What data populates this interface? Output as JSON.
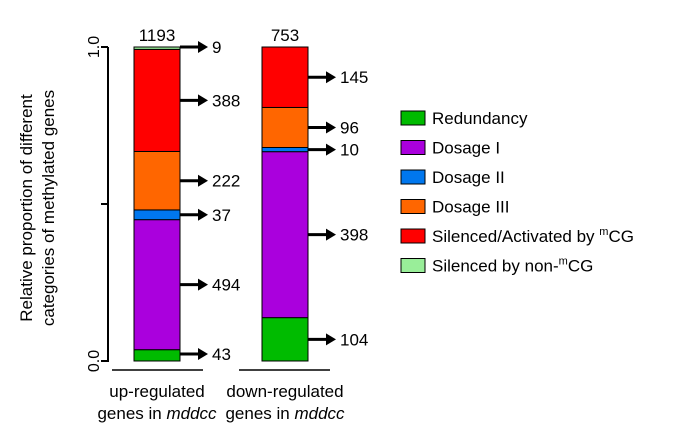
{
  "chart_data": {
    "type": "bar",
    "stacked": true,
    "normalized": true,
    "ylabel_lines": [
      "Relative proportion of different",
      "categories of methylated genes"
    ],
    "yticks": [
      "0.0",
      "",
      "1.0"
    ],
    "ylim": [
      0,
      1
    ],
    "categories": [
      {
        "line1": "up-regulated",
        "line2_prefix": "genes in ",
        "line2_italic": "mddcc",
        "total": "1193"
      },
      {
        "line1": "down-regulated",
        "line2_prefix": "genes in ",
        "line2_italic": "mddcc",
        "total": "753"
      }
    ],
    "series": [
      {
        "name": "Redundancy",
        "color": "#00bb00",
        "values": [
          43,
          104
        ]
      },
      {
        "name": "Dosage I",
        "color": "#aa00dd",
        "values": [
          494,
          398
        ]
      },
      {
        "name": "Dosage II",
        "color": "#0077ee",
        "values": [
          37,
          10
        ]
      },
      {
        "name": "Dosage III",
        "color": "#ff6600",
        "values": [
          222,
          96
        ]
      },
      {
        "name": "Silenced/Activated by mCG",
        "color": "#ff0000",
        "values": [
          388,
          145
        ]
      },
      {
        "name": "Silenced by non-mCG",
        "color": "#99ee99",
        "values": [
          9,
          0
        ]
      }
    ],
    "legend": [
      {
        "label": "Redundancy",
        "sup": "",
        "suffix": "",
        "color": "#00bb00"
      },
      {
        "label": "Dosage I",
        "sup": "",
        "suffix": "",
        "color": "#aa00dd"
      },
      {
        "label": "Dosage II",
        "sup": "",
        "suffix": "",
        "color": "#0077ee"
      },
      {
        "label": "Dosage III",
        "sup": "",
        "suffix": "",
        "color": "#ff6600"
      },
      {
        "label": "Silenced/Activated by ",
        "sup": "m",
        "suffix": "CG",
        "color": "#ff0000"
      },
      {
        "label": "Silenced by non-",
        "sup": "m",
        "suffix": "CG",
        "color": "#99ee99"
      }
    ],
    "annotations": [
      {
        "bar": 0,
        "series": 0,
        "text": "43"
      },
      {
        "bar": 0,
        "series": 1,
        "text": "494"
      },
      {
        "bar": 0,
        "series": 2,
        "text": "37"
      },
      {
        "bar": 0,
        "series": 3,
        "text": "222"
      },
      {
        "bar": 0,
        "series": 4,
        "text": "388"
      },
      {
        "bar": 0,
        "series": 5,
        "text": "9"
      },
      {
        "bar": 1,
        "series": 0,
        "text": "104"
      },
      {
        "bar": 1,
        "series": 1,
        "text": "398"
      },
      {
        "bar": 1,
        "series": 2,
        "text": "10"
      },
      {
        "bar": 1,
        "series": 3,
        "text": "96"
      },
      {
        "bar": 1,
        "series": 4,
        "text": "145"
      }
    ]
  }
}
